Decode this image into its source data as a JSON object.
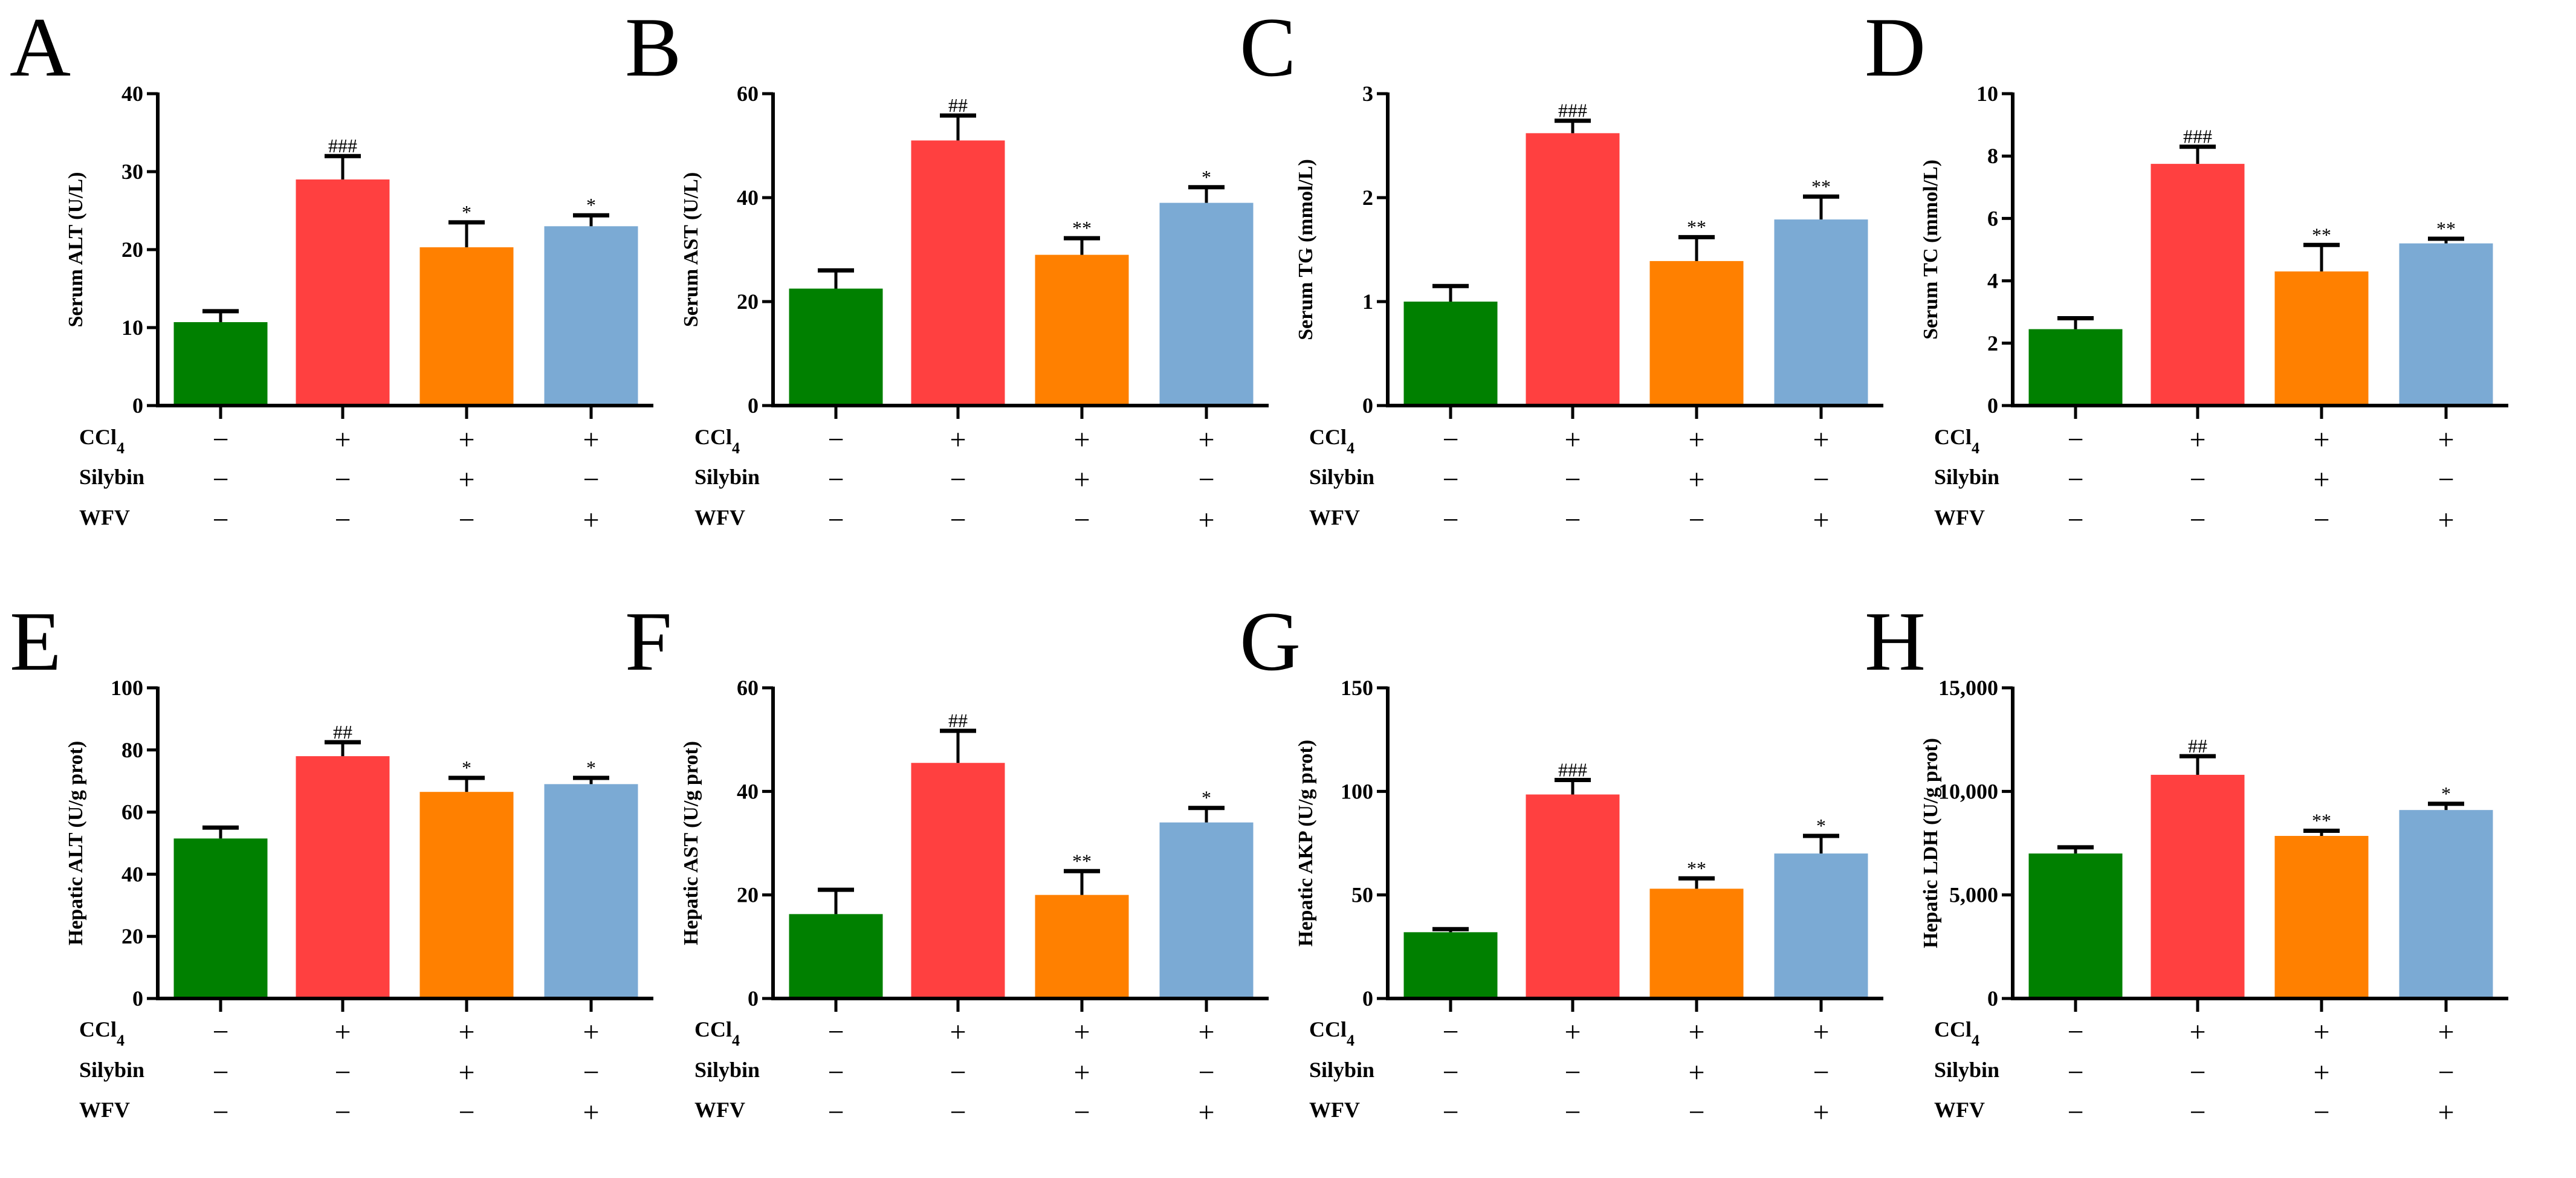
{
  "colors": [
    "#008000",
    "#FF4040",
    "#FF8000",
    "#7BAAD4"
  ],
  "treatments": [
    {
      "label": "CCl",
      "sub": "4",
      "signs": [
        "−",
        "+",
        "+",
        "+"
      ]
    },
    {
      "label": "Silybin",
      "sub": "",
      "signs": [
        "−",
        "−",
        "+",
        "−"
      ]
    },
    {
      "label": "WFV",
      "sub": "",
      "signs": [
        "−",
        "−",
        "−",
        "+"
      ]
    }
  ],
  "chart_data": [
    {
      "type": "bar",
      "panel": "A",
      "ylabel": "Serum ALT (U/L)",
      "ylim": [
        0,
        40
      ],
      "ticks": [
        "0",
        "10",
        "20",
        "30",
        "40"
      ],
      "tick_values": [
        0,
        10,
        20,
        30,
        40
      ],
      "values": [
        10.7,
        29.0,
        20.3,
        23.0
      ],
      "errors": [
        1.4,
        3.0,
        3.2,
        1.4
      ],
      "significance": [
        "",
        "###",
        "*",
        "*"
      ]
    },
    {
      "type": "bar",
      "panel": "B",
      "ylabel": "Serum AST (U/L)",
      "ylim": [
        0,
        60
      ],
      "ticks": [
        "0",
        "20",
        "40",
        "60"
      ],
      "tick_values": [
        0,
        20,
        40,
        60
      ],
      "values": [
        22.5,
        51.0,
        29.0,
        39.0
      ],
      "errors": [
        3.5,
        4.8,
        3.2,
        3.0
      ],
      "significance": [
        "",
        "##",
        "**",
        "*"
      ]
    },
    {
      "type": "bar",
      "panel": "C",
      "ylabel": "Serum TG (mmol/L)",
      "ylim": [
        0,
        3
      ],
      "ticks": [
        "0",
        "1",
        "2",
        "3"
      ],
      "tick_values": [
        0,
        1,
        2,
        3
      ],
      "values": [
        1.0,
        2.62,
        1.39,
        1.79
      ],
      "errors": [
        0.15,
        0.12,
        0.23,
        0.22
      ],
      "significance": [
        "",
        "###",
        "**",
        "**"
      ]
    },
    {
      "type": "bar",
      "panel": "D",
      "ylabel": "Serum TC (mmol/L)",
      "ylim": [
        0,
        10
      ],
      "ticks": [
        "0",
        "2",
        "4",
        "6",
        "8",
        "10"
      ],
      "tick_values": [
        0,
        2,
        4,
        6,
        8,
        10
      ],
      "values": [
        2.45,
        7.75,
        4.3,
        5.2
      ],
      "errors": [
        0.35,
        0.55,
        0.85,
        0.15
      ],
      "significance": [
        "",
        "###",
        "**",
        "**"
      ]
    },
    {
      "type": "bar",
      "panel": "E",
      "ylabel": "Hepatic ALT (U/g prot)",
      "ylim": [
        0,
        100
      ],
      "ticks": [
        "0",
        "20",
        "40",
        "60",
        "80",
        "100"
      ],
      "tick_values": [
        0,
        20,
        40,
        60,
        80,
        100
      ],
      "values": [
        51.5,
        78.0,
        66.5,
        69.0
      ],
      "errors": [
        3.5,
        4.5,
        4.5,
        2.0
      ],
      "significance": [
        "",
        "##",
        "*",
        "*"
      ]
    },
    {
      "type": "bar",
      "panel": "F",
      "ylabel": "Hepatic AST (U/g prot)",
      "ylim": [
        0,
        60
      ],
      "ticks": [
        "0",
        "20",
        "40",
        "60"
      ],
      "tick_values": [
        0,
        20,
        40,
        60
      ],
      "values": [
        16.3,
        45.5,
        20.0,
        34.0
      ],
      "errors": [
        4.7,
        6.2,
        4.6,
        2.8
      ],
      "significance": [
        "",
        "##",
        "**",
        "*"
      ]
    },
    {
      "type": "bar",
      "panel": "G",
      "ylabel": "Hepatic AKP (U/g prot)",
      "ylim": [
        0,
        150
      ],
      "ticks": [
        "0",
        "50",
        "100",
        "150"
      ],
      "tick_values": [
        0,
        50,
        100,
        150
      ],
      "values": [
        32.0,
        98.5,
        53.0,
        70.0
      ],
      "errors": [
        1.5,
        7.0,
        5.0,
        8.5
      ],
      "significance": [
        "",
        "###",
        "**",
        "*"
      ]
    },
    {
      "type": "bar",
      "panel": "H",
      "ylabel": "Hepatic LDH (U/g prot)",
      "ylim": [
        0,
        15000
      ],
      "ticks": [
        "0",
        "5,000",
        "10,000",
        "15,000"
      ],
      "tick_values": [
        0,
        5000,
        10000,
        15000
      ],
      "values": [
        7000,
        10800,
        7850,
        9100
      ],
      "errors": [
        300,
        900,
        250,
        300
      ],
      "significance": [
        "",
        "##",
        "**",
        "*"
      ]
    }
  ]
}
